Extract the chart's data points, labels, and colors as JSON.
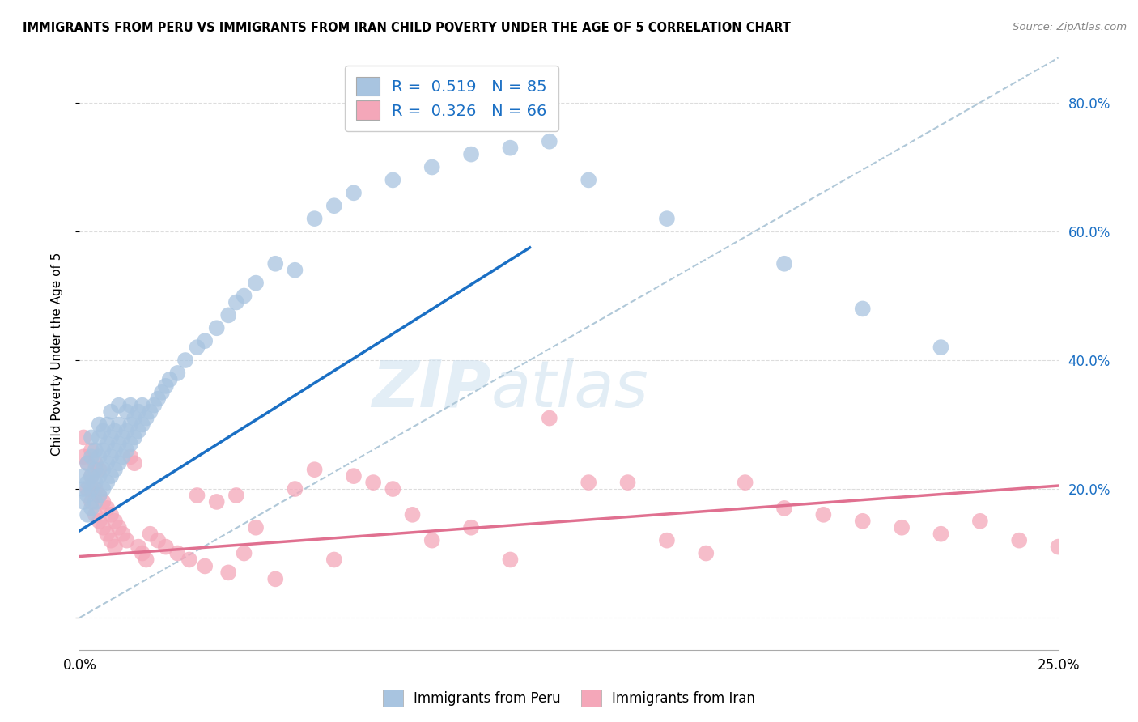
{
  "title": "IMMIGRANTS FROM PERU VS IMMIGRANTS FROM IRAN CHILD POVERTY UNDER THE AGE OF 5 CORRELATION CHART",
  "source": "Source: ZipAtlas.com",
  "ylabel": "Child Poverty Under the Age of 5",
  "xlim": [
    0,
    0.25
  ],
  "ylim": [
    -0.05,
    0.87
  ],
  "peru_color": "#a8c4e0",
  "iran_color": "#f4a7b9",
  "peru_line_color": "#1a6fc4",
  "iran_line_color": "#e07090",
  "diag_color": "#b0c8d8",
  "legend_box_peru": "#a8c4e0",
  "legend_box_iran": "#f4a7b9",
  "watermark_zip": "ZIP",
  "watermark_atlas": "atlas",
  "peru_R": 0.519,
  "peru_N": 85,
  "iran_R": 0.326,
  "iran_N": 66,
  "peru_line_x0": 0.0,
  "peru_line_y0": 0.135,
  "peru_line_x1": 0.115,
  "peru_line_y1": 0.575,
  "iran_line_x0": 0.0,
  "iran_line_y0": 0.095,
  "iran_line_x1": 0.25,
  "iran_line_y1": 0.205,
  "peru_scatter_x": [
    0.001,
    0.001,
    0.001,
    0.002,
    0.002,
    0.002,
    0.002,
    0.003,
    0.003,
    0.003,
    0.003,
    0.003,
    0.004,
    0.004,
    0.004,
    0.004,
    0.005,
    0.005,
    0.005,
    0.005,
    0.005,
    0.006,
    0.006,
    0.006,
    0.006,
    0.007,
    0.007,
    0.007,
    0.007,
    0.008,
    0.008,
    0.008,
    0.008,
    0.009,
    0.009,
    0.009,
    0.01,
    0.01,
    0.01,
    0.01,
    0.011,
    0.011,
    0.012,
    0.012,
    0.012,
    0.013,
    0.013,
    0.013,
    0.014,
    0.014,
    0.015,
    0.015,
    0.016,
    0.016,
    0.017,
    0.018,
    0.019,
    0.02,
    0.021,
    0.022,
    0.023,
    0.025,
    0.027,
    0.03,
    0.032,
    0.035,
    0.038,
    0.04,
    0.042,
    0.045,
    0.05,
    0.055,
    0.06,
    0.065,
    0.07,
    0.08,
    0.09,
    0.1,
    0.11,
    0.12,
    0.13,
    0.15,
    0.18,
    0.2,
    0.22
  ],
  "peru_scatter_y": [
    0.18,
    0.2,
    0.22,
    0.16,
    0.19,
    0.21,
    0.24,
    0.17,
    0.2,
    0.22,
    0.25,
    0.28,
    0.18,
    0.21,
    0.23,
    0.26,
    0.19,
    0.22,
    0.25,
    0.28,
    0.3,
    0.2,
    0.23,
    0.26,
    0.29,
    0.21,
    0.24,
    0.27,
    0.3,
    0.22,
    0.25,
    0.28,
    0.32,
    0.23,
    0.26,
    0.29,
    0.24,
    0.27,
    0.3,
    0.33,
    0.25,
    0.28,
    0.26,
    0.29,
    0.32,
    0.27,
    0.3,
    0.33,
    0.28,
    0.31,
    0.29,
    0.32,
    0.3,
    0.33,
    0.31,
    0.32,
    0.33,
    0.34,
    0.35,
    0.36,
    0.37,
    0.38,
    0.4,
    0.42,
    0.43,
    0.45,
    0.47,
    0.49,
    0.5,
    0.52,
    0.55,
    0.54,
    0.62,
    0.64,
    0.66,
    0.68,
    0.7,
    0.72,
    0.73,
    0.74,
    0.68,
    0.62,
    0.55,
    0.48,
    0.42
  ],
  "iran_scatter_x": [
    0.001,
    0.001,
    0.002,
    0.002,
    0.003,
    0.003,
    0.003,
    0.004,
    0.004,
    0.004,
    0.005,
    0.005,
    0.005,
    0.006,
    0.006,
    0.007,
    0.007,
    0.008,
    0.008,
    0.009,
    0.009,
    0.01,
    0.011,
    0.012,
    0.013,
    0.014,
    0.015,
    0.016,
    0.017,
    0.018,
    0.02,
    0.022,
    0.025,
    0.028,
    0.03,
    0.032,
    0.035,
    0.038,
    0.04,
    0.042,
    0.045,
    0.05,
    0.055,
    0.06,
    0.065,
    0.07,
    0.075,
    0.08,
    0.085,
    0.09,
    0.1,
    0.11,
    0.12,
    0.13,
    0.14,
    0.15,
    0.16,
    0.17,
    0.18,
    0.19,
    0.2,
    0.21,
    0.22,
    0.23,
    0.24,
    0.25
  ],
  "iran_scatter_y": [
    0.25,
    0.28,
    0.2,
    0.24,
    0.18,
    0.22,
    0.26,
    0.16,
    0.2,
    0.24,
    0.15,
    0.19,
    0.23,
    0.14,
    0.18,
    0.13,
    0.17,
    0.12,
    0.16,
    0.11,
    0.15,
    0.14,
    0.13,
    0.12,
    0.25,
    0.24,
    0.11,
    0.1,
    0.09,
    0.13,
    0.12,
    0.11,
    0.1,
    0.09,
    0.19,
    0.08,
    0.18,
    0.07,
    0.19,
    0.1,
    0.14,
    0.06,
    0.2,
    0.23,
    0.09,
    0.22,
    0.21,
    0.2,
    0.16,
    0.12,
    0.14,
    0.09,
    0.31,
    0.21,
    0.21,
    0.12,
    0.1,
    0.21,
    0.17,
    0.16,
    0.15,
    0.14,
    0.13,
    0.15,
    0.12,
    0.11
  ]
}
